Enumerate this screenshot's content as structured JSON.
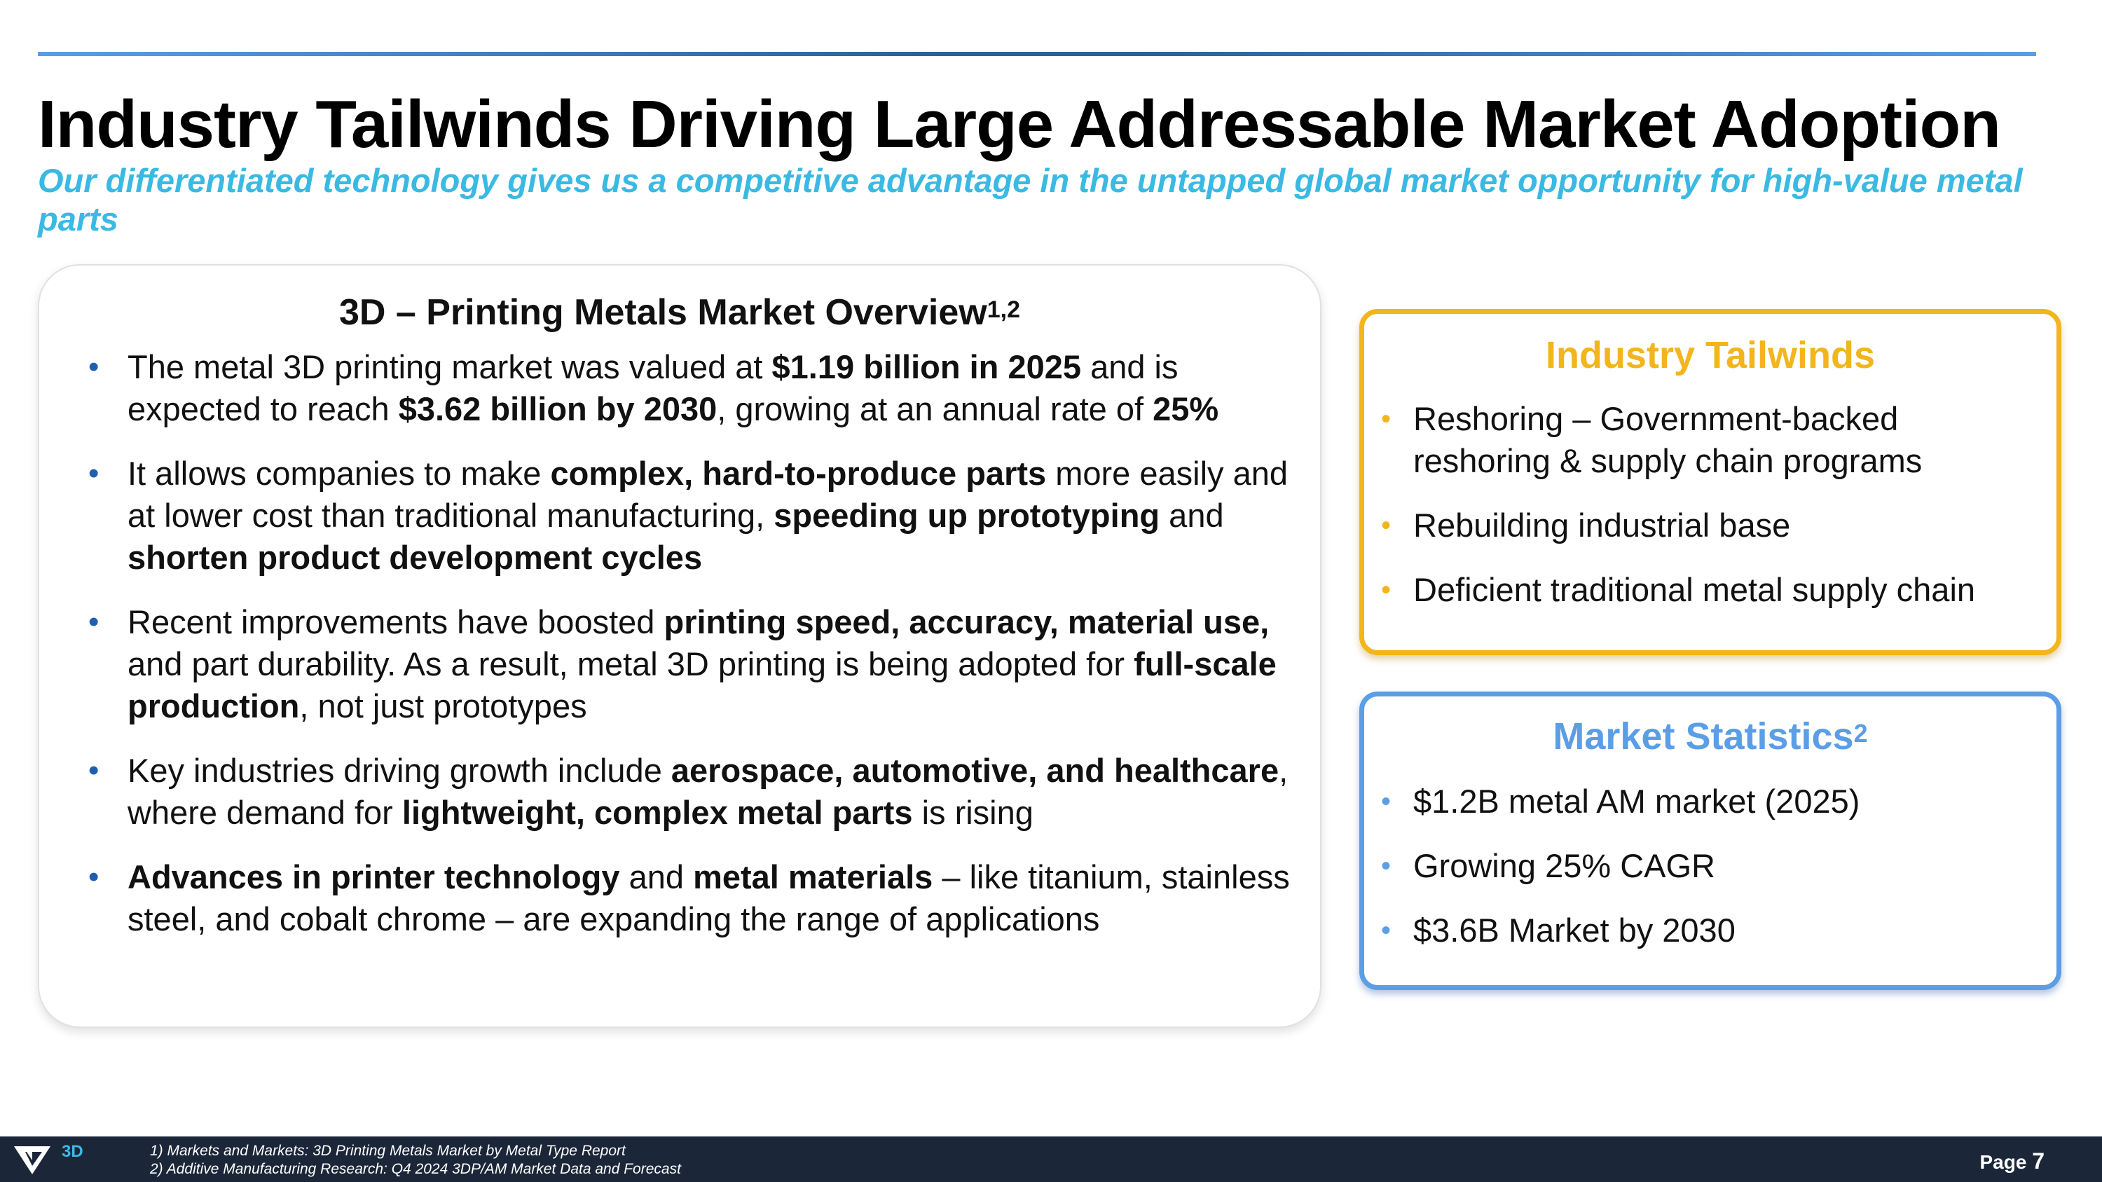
{
  "header": {
    "title": "Industry Tailwinds Driving Large Addressable Market Adoption",
    "subtitle": "Our differentiated technology gives us a competitive advantage in the untapped global market opportunity for high-value metal parts"
  },
  "overview": {
    "title": "3D – Printing Metals Market Overview",
    "title_sup": "1,2",
    "bullets": [
      [
        {
          "t": "The metal 3D printing market was valued at ",
          "b": false
        },
        {
          "t": "$1.19 billion in 2025",
          "b": true
        },
        {
          "t": " and is expected to reach ",
          "b": false
        },
        {
          "t": "$3.62 billion by 2030",
          "b": true
        },
        {
          "t": ", growing at an annual rate of ",
          "b": false
        },
        {
          "t": "25%",
          "b": true
        }
      ],
      [
        {
          "t": "It allows companies to make ",
          "b": false
        },
        {
          "t": "complex, hard-to-produce parts",
          "b": true
        },
        {
          "t": " more easily and at lower cost than traditional manufacturing, ",
          "b": false
        },
        {
          "t": "speeding up prototyping",
          "b": true
        },
        {
          "t": " and ",
          "b": false
        },
        {
          "t": "shorten product development cycles",
          "b": true
        }
      ],
      [
        {
          "t": "Recent improvements have boosted ",
          "b": false
        },
        {
          "t": "printing speed, accuracy, material use,",
          "b": true
        },
        {
          "t": " and part durability. As a result, metal 3D printing is being adopted for ",
          "b": false
        },
        {
          "t": "full-scale production",
          "b": true
        },
        {
          "t": ", not just prototypes",
          "b": false
        }
      ],
      [
        {
          "t": "Key industries driving growth include ",
          "b": false
        },
        {
          "t": "aerospace, automotive, and healthcare",
          "b": true
        },
        {
          "t": ", where demand for ",
          "b": false
        },
        {
          "t": "lightweight, complex metal parts",
          "b": true
        },
        {
          "t": " is rising",
          "b": false
        }
      ],
      [
        {
          "t": "Advances in printer technology",
          "b": true
        },
        {
          "t": " and ",
          "b": false
        },
        {
          "t": "metal materials",
          "b": true
        },
        {
          "t": " – like titanium, stainless steel, and cobalt chrome – are expanding the range of applications",
          "b": false
        }
      ]
    ]
  },
  "tailwinds": {
    "title": "Industry Tailwinds",
    "items": [
      "Reshoring – Government-backed reshoring & supply chain programs",
      "Rebuilding industrial base",
      "Deficient traditional metal supply chain"
    ]
  },
  "stats": {
    "title": "Market Statistics",
    "title_sup": "2",
    "items": [
      "$1.2B metal AM market (2025)",
      "Growing 25% CAGR",
      "$3.6B Market by 2030"
    ]
  },
  "footer": {
    "logo_text": "3D",
    "footnotes": [
      "1) Markets and Markets: 3D Printing Metals Market by Metal Type Report",
      "2) Additive Manufacturing Research: Q4 2024 3DP/AM Market Data and Forecast"
    ],
    "page_label": "Page",
    "page_number": "7"
  },
  "colors": {
    "accent_blue": "#5b9ee6",
    "subtitle_cyan": "#3ab9e3",
    "tailwinds_gold": "#f2b51c",
    "footer_navy": "#1b2739"
  },
  "icons": [
    "logo-v-icon"
  ]
}
